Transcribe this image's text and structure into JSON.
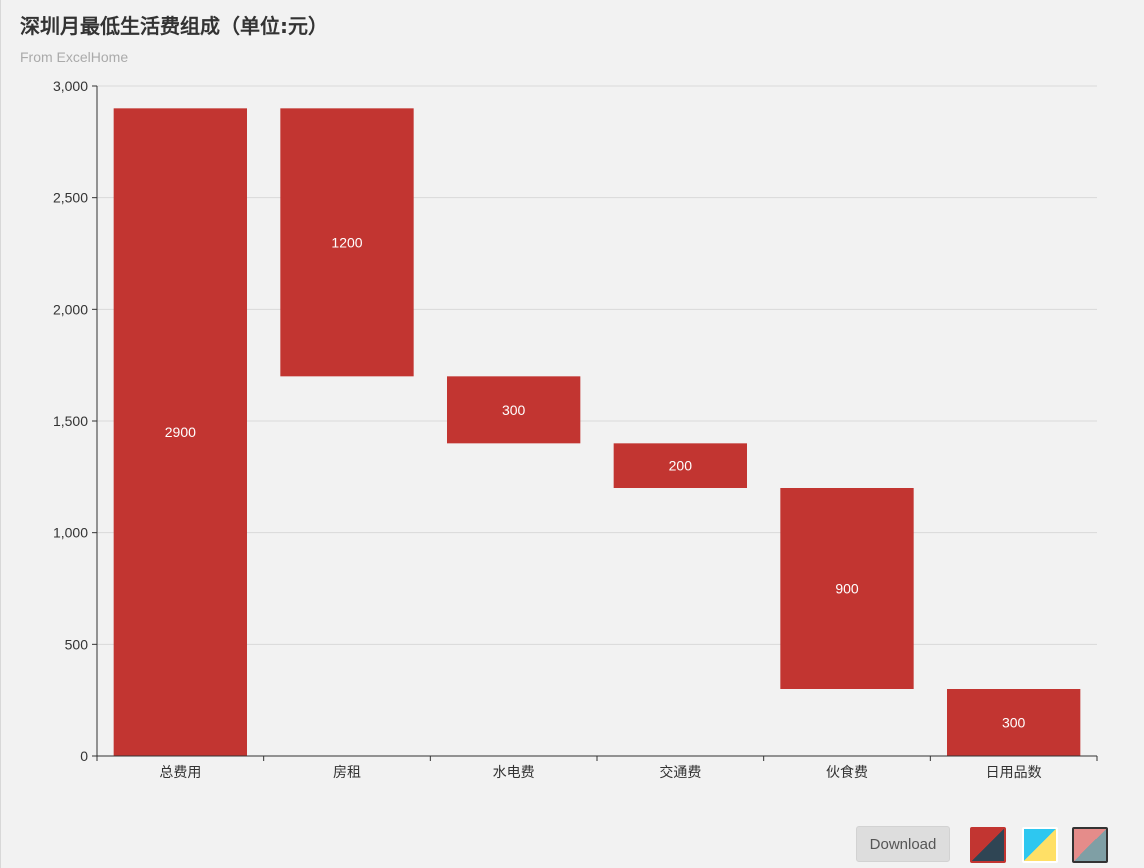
{
  "title": "深圳月最低生活费组成（单位:元）",
  "subtitle": "From ExcelHome",
  "download_label": "Download",
  "theme_icons": [
    "theme-red-dark-icon",
    "theme-blue-yellow-icon",
    "theme-pink-teal-icon"
  ],
  "colors": {
    "bar": "#c23531",
    "grid": "#d9d9d9",
    "axis": "#333333",
    "background": "#f2f2f2"
  },
  "chart_data": {
    "type": "bar",
    "subtype": "waterfall",
    "title": "深圳月最低生活费组成（单位:元）",
    "subtitle": "From ExcelHome",
    "categories": [
      "总费用",
      "房租",
      "水电费",
      "交通费",
      "伙食费",
      "日用品数"
    ],
    "values": [
      2900,
      1200,
      300,
      200,
      900,
      300
    ],
    "bases": [
      0,
      1700,
      1400,
      1200,
      300,
      0
    ],
    "data_labels": [
      "2900",
      "1200",
      "300",
      "200",
      "900",
      "300"
    ],
    "ylim": [
      0,
      3000
    ],
    "yticks": [
      0,
      500,
      1000,
      1500,
      2000,
      2500,
      3000
    ],
    "ytick_labels": [
      "0",
      "500",
      "1,000",
      "1,500",
      "2,000",
      "2,500",
      "3,000"
    ],
    "xlabel": "",
    "ylabel": "",
    "grid": true,
    "legend": "none"
  }
}
